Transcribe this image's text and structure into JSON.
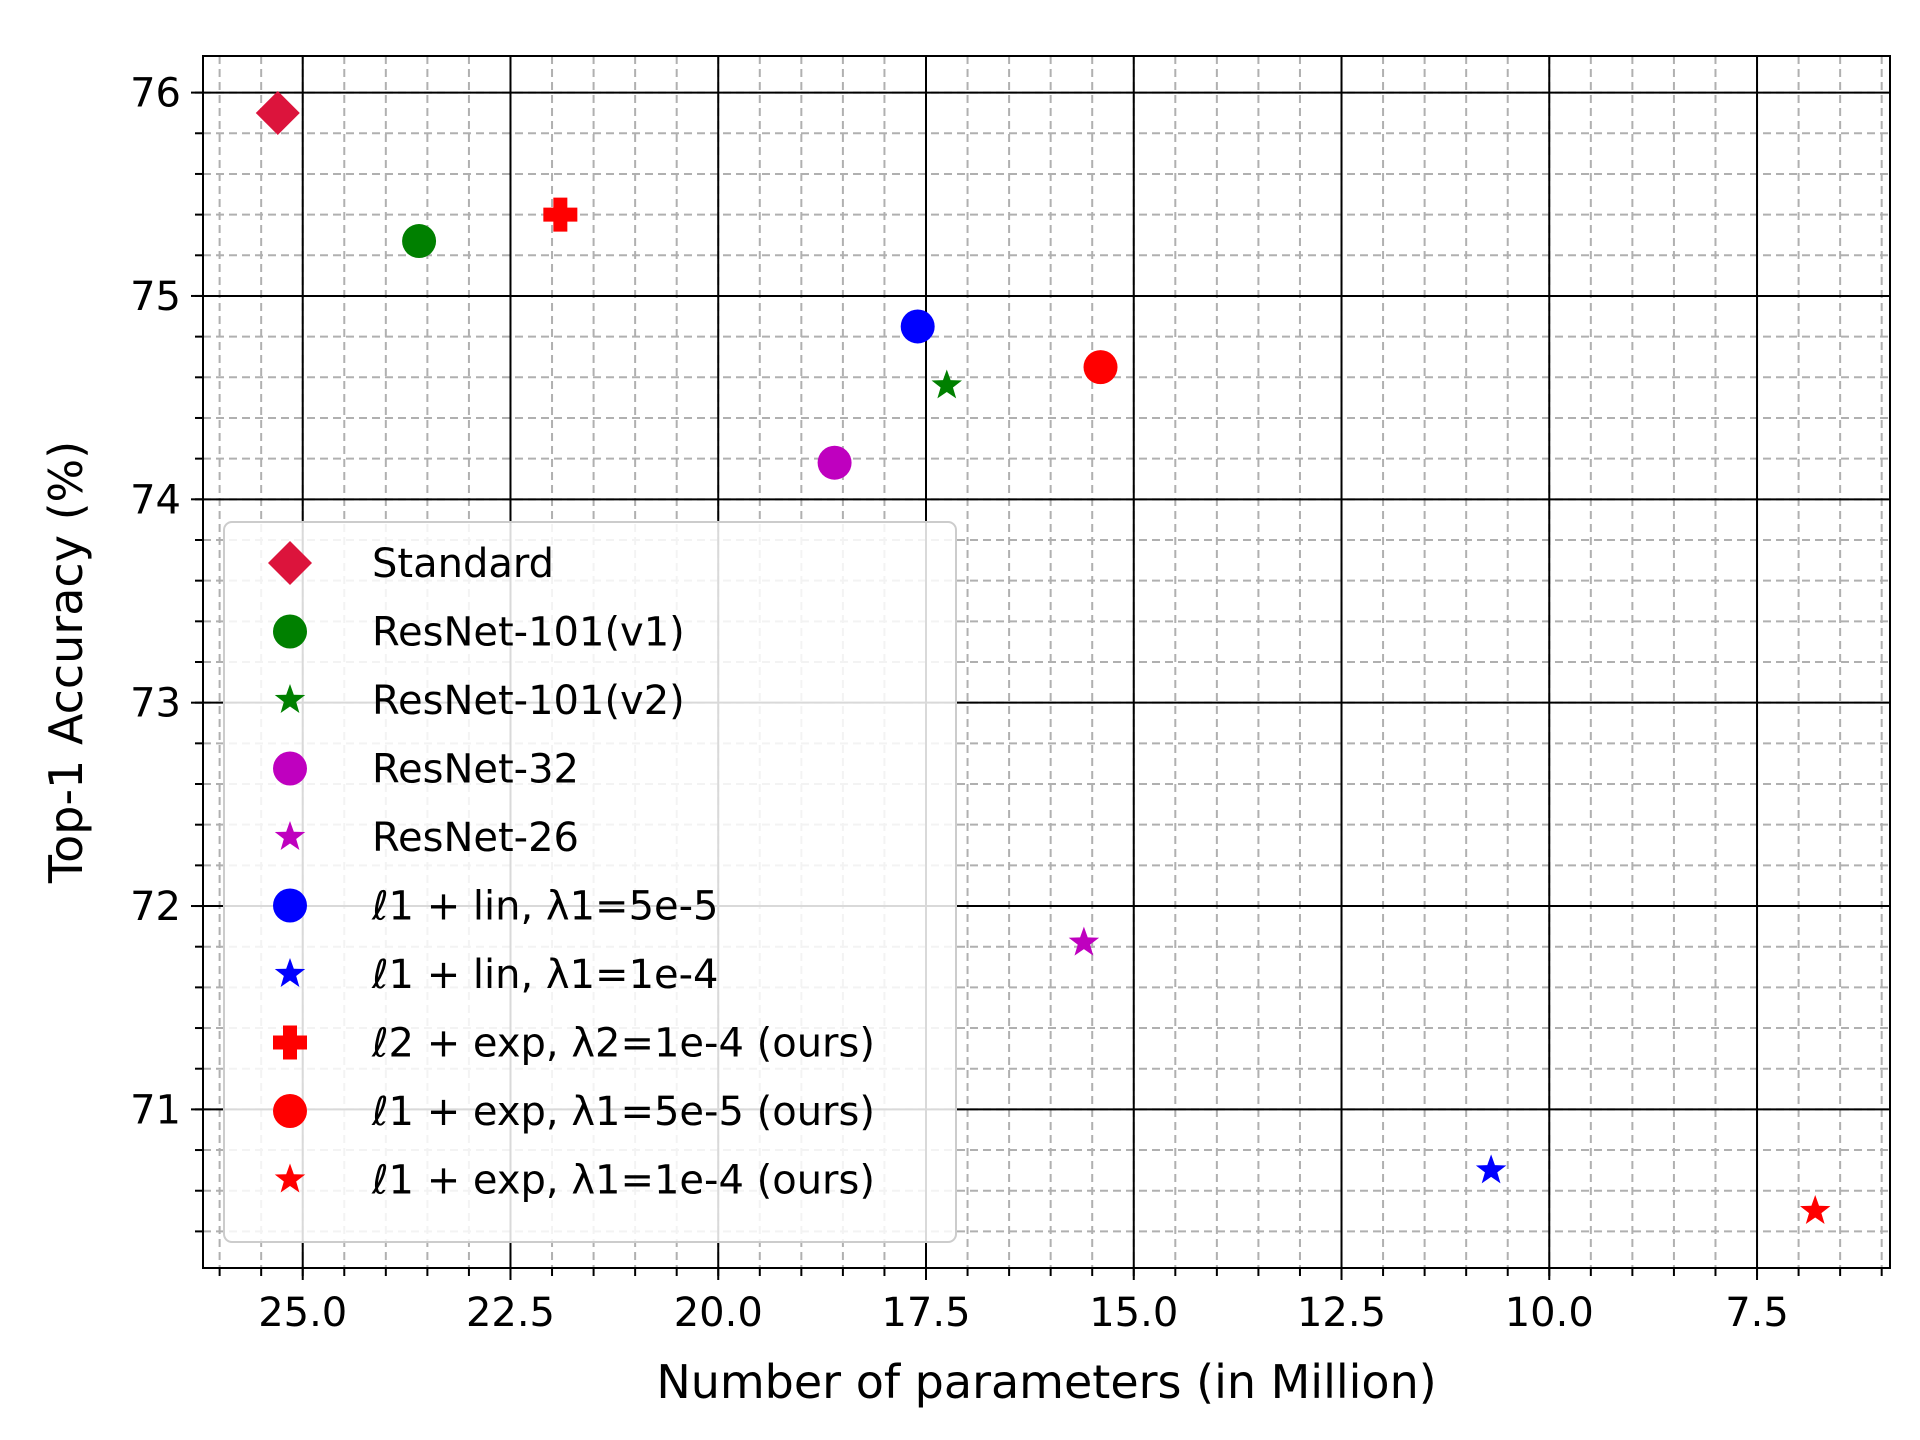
{
  "chart_data": {
    "type": "scatter",
    "title": "",
    "xlabel": "Number of parameters (in Million)",
    "ylabel": "Top-1 Accuracy (%)",
    "xlim": [
      26.2,
      5.9
    ],
    "ylim": [
      70.22,
      76.18
    ],
    "x_inverted": true,
    "xticks": [
      25.0,
      22.5,
      20.0,
      17.5,
      15.0,
      12.5,
      10.0,
      7.5
    ],
    "xtick_labels": [
      "25.0",
      "22.5",
      "20.0",
      "17.5",
      "15.0",
      "12.5",
      "10.0",
      "7.5"
    ],
    "yticks": [
      71,
      72,
      73,
      74,
      75,
      76
    ],
    "ytick_labels": [
      "71",
      "72",
      "73",
      "74",
      "75",
      "76"
    ],
    "x_minor_step": 0.5,
    "y_minor_step": 0.2,
    "grid": "major solid black, minor dashed gray",
    "legend_position": "lower-left",
    "series": [
      {
        "name": "Standard",
        "marker": "diamond",
        "color": "#dc143c",
        "x": 25.3,
        "y": 75.9
      },
      {
        "name": "ResNet-101(v1)",
        "marker": "circle",
        "color": "#008000",
        "x": 23.6,
        "y": 75.27
      },
      {
        "name": "ResNet-101(v2)",
        "marker": "star",
        "color": "#008000",
        "x": 17.25,
        "y": 74.56
      },
      {
        "name": "ResNet-32",
        "marker": "circle",
        "color": "#bf00bf",
        "x": 18.6,
        "y": 74.18
      },
      {
        "name": "ResNet-26",
        "marker": "star",
        "color": "#bf00bf",
        "x": 15.6,
        "y": 71.82
      },
      {
        "name": "ℓ1 + lin, λ1=5e-5",
        "marker": "circle",
        "color": "#0000ff",
        "x": 17.6,
        "y": 74.85
      },
      {
        "name": "ℓ1 + lin, λ1=1e-4",
        "marker": "star",
        "color": "#0000ff",
        "x": 10.7,
        "y": 70.7
      },
      {
        "name": "ℓ2 + exp, λ2=1e-4 (ours)",
        "marker": "plus",
        "color": "#ff0000",
        "x": 21.9,
        "y": 75.4
      },
      {
        "name": "ℓ1 + exp, λ1=5e-5 (ours)",
        "marker": "circle",
        "color": "#ff0000",
        "x": 15.4,
        "y": 74.65
      },
      {
        "name": "ℓ1 + exp, λ1=1e-4 (ours)",
        "marker": "star",
        "color": "#ff0000",
        "x": 6.8,
        "y": 70.5
      }
    ]
  }
}
